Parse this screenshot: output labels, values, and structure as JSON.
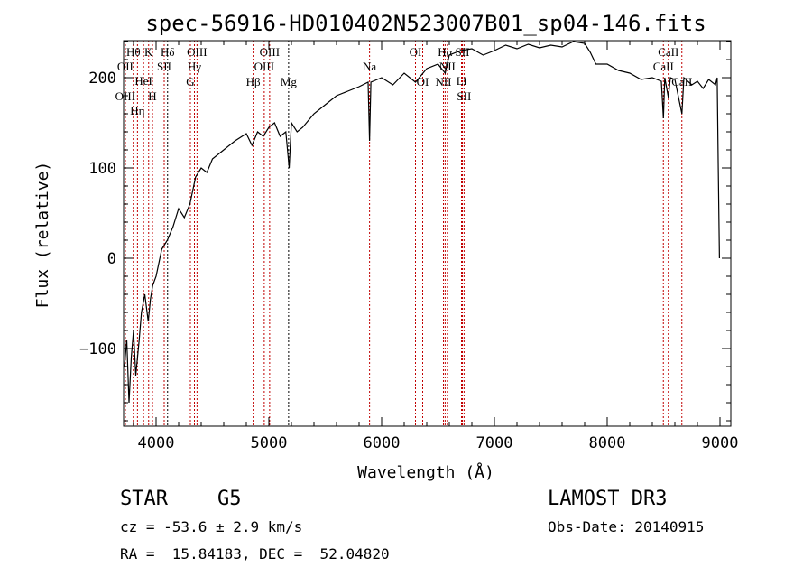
{
  "chart_data": {
    "type": "line",
    "title": "spec-56916-HD010402N523007B01_sp04-146.fits",
    "xlabel": "Wavelength (Å)",
    "ylabel": "Flux (relative)",
    "xlim": [
      3712,
      9096
    ],
    "ylim": [
      -186,
      241
    ],
    "xticks": [
      4000,
      5000,
      6000,
      7000,
      8000,
      9000
    ],
    "yticks": [
      -100,
      0,
      100,
      200
    ],
    "grid": false,
    "series": [
      {
        "name": "spectrum",
        "x": [
          3720,
          3740,
          3760,
          3780,
          3800,
          3820,
          3850,
          3870,
          3900,
          3930,
          3950,
          3970,
          4000,
          4050,
          4100,
          4150,
          4200,
          4250,
          4300,
          4350,
          4400,
          4450,
          4500,
          4600,
          4700,
          4800,
          4850,
          4900,
          4950,
          5000,
          5050,
          5100,
          5150,
          5180,
          5200,
          5250,
          5300,
          5400,
          5500,
          5600,
          5700,
          5800,
          5880,
          5893,
          5905,
          6000,
          6100,
          6200,
          6300,
          6400,
          6500,
          6563,
          6600,
          6700,
          6800,
          6900,
          7000,
          7100,
          7200,
          7300,
          7400,
          7500,
          7600,
          7700,
          7800,
          7850,
          7900,
          8000,
          8100,
          8200,
          8300,
          8400,
          8480,
          8498,
          8510,
          8542,
          8560,
          8600,
          8662,
          8680,
          8750,
          8800,
          8850,
          8900,
          8960,
          8975,
          8985,
          8995
        ],
        "y": [
          -120,
          -90,
          -160,
          -110,
          -80,
          -130,
          -90,
          -60,
          -40,
          -70,
          -45,
          -30,
          -20,
          10,
          20,
          35,
          55,
          45,
          60,
          90,
          100,
          95,
          110,
          120,
          130,
          138,
          125,
          140,
          135,
          145,
          150,
          135,
          140,
          100,
          150,
          140,
          145,
          160,
          170,
          180,
          185,
          190,
          195,
          130,
          195,
          200,
          192,
          205,
          195,
          210,
          215,
          205,
          225,
          230,
          232,
          225,
          230,
          236,
          232,
          237,
          233,
          236,
          234,
          240,
          238,
          228,
          215,
          215,
          208,
          205,
          198,
          200,
          196,
          155,
          200,
          178,
          200,
          198,
          160,
          200,
          192,
          196,
          188,
          198,
          192,
          200,
          100,
          0
        ]
      }
    ],
    "lines": [
      {
        "wl": 3727,
        "label": "OII",
        "row": 2,
        "color": "red"
      },
      {
        "wl": 3727,
        "label": "OIII",
        "row": 3,
        "color": "red"
      },
      {
        "wl": 3798,
        "label": "Hθ",
        "row": 1,
        "color": "red"
      },
      {
        "wl": 3835,
        "label": "Hη",
        "row": 3,
        "color": "red"
      },
      {
        "wl": 3889,
        "label": "HeI",
        "row": 2,
        "color": "red"
      },
      {
        "wl": 3934,
        "label": "K",
        "row": 1,
        "color": "red"
      },
      {
        "wl": 3968,
        "label": "H",
        "row": 3,
        "color": "red"
      },
      {
        "wl": 4072,
        "label": "SII",
        "row": 2,
        "color": "red"
      },
      {
        "wl": 4102,
        "label": "Hδ",
        "row": 1,
        "color": "black"
      },
      {
        "wl": 4304,
        "label": "G",
        "row": 3,
        "color": "red"
      },
      {
        "wl": 4340,
        "label": "Hγ",
        "row": 2,
        "color": "red"
      },
      {
        "wl": 4363,
        "label": "OIII",
        "row": 1,
        "color": "red"
      },
      {
        "wl": 4861,
        "label": "Hβ",
        "row": 3,
        "color": "red"
      },
      {
        "wl": 4959,
        "label": "OIII",
        "row": 2,
        "color": "red"
      },
      {
        "wl": 5007,
        "label": "OIII",
        "row": 1,
        "color": "red"
      },
      {
        "wl": 5175,
        "label": "Mg",
        "row": 3,
        "color": "black"
      },
      {
        "wl": 5893,
        "label": "Na",
        "row": 2,
        "color": "red"
      },
      {
        "wl": 6300,
        "label": "OI",
        "row": 1,
        "color": "red"
      },
      {
        "wl": 6364,
        "label": "OI",
        "row": 3,
        "color": "red"
      },
      {
        "wl": 6548,
        "label": "NII",
        "row": 3,
        "color": "red"
      },
      {
        "wl": 6563,
        "label": "Hα",
        "row": 1,
        "color": "red"
      },
      {
        "wl": 6583,
        "label": "NII",
        "row": 2,
        "color": "red"
      },
      {
        "wl": 6708,
        "label": "Li",
        "row": 2,
        "color": "red"
      },
      {
        "wl": 6716,
        "label": "SII",
        "row": 1,
        "color": "red"
      },
      {
        "wl": 6731,
        "label": "SII",
        "row": 3,
        "color": "red"
      },
      {
        "wl": 8498,
        "label": "CaII",
        "row": 2,
        "color": "red"
      },
      {
        "wl": 8542,
        "label": "CaII",
        "row": 1,
        "color": "red"
      },
      {
        "wl": 8662,
        "label": "CaII",
        "row": 3,
        "color": "red"
      }
    ]
  },
  "info": {
    "class": "STAR",
    "subclass": "G5",
    "survey": "LAMOST DR3",
    "cz": "cz = -53.6 ± 2.9 km/s",
    "obs_date": "Obs-Date: 20140915",
    "radec": "RA =  15.84183, DEC =  52.04820"
  }
}
